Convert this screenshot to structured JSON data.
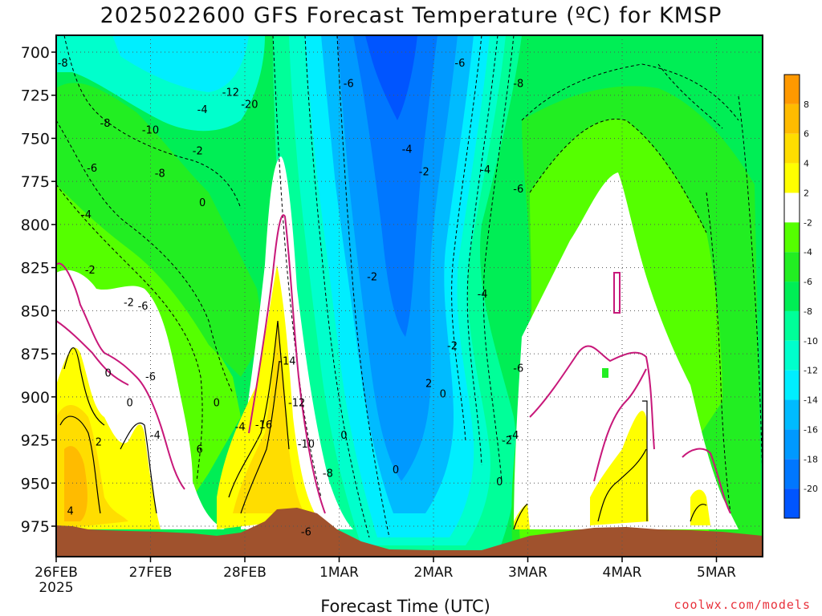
{
  "title": "2025022600 GFS Forecast Temperature (ºC) for KMSP",
  "credit": "coolwx.com/models",
  "colors": {
    "ground": "#a0522d",
    "zero_isotherm": "#c8187a",
    "contour": "#000000"
  },
  "chart_data": {
    "type": "heatmap",
    "title": "2025022600 GFS Forecast Temperature (ºC) for KMSP",
    "xlabel": "Forecast Time (UTC)",
    "ylabel": "",
    "x_ticks": [
      "26FEB",
      "27FEB",
      "28FEB",
      "1MAR",
      "2MAR",
      "3MAR",
      "4MAR",
      "5MAR"
    ],
    "x_year_label": "2025",
    "y_ticks": [
      700,
      725,
      750,
      775,
      800,
      825,
      850,
      875,
      900,
      925,
      950,
      975
    ],
    "ylim": [
      990,
      690
    ],
    "grid": true,
    "colorbar": {
      "labels": [
        "8",
        "6",
        "4",
        "2",
        "-2",
        "-4",
        "-6",
        "-8",
        "-10",
        "-12",
        "-14",
        "-16",
        "-18",
        "-20"
      ],
      "bins": [
        {
          "range": [
            8,
            10
          ],
          "color": "#ff9900"
        },
        {
          "range": [
            6,
            8
          ],
          "color": "#ffbb00"
        },
        {
          "range": [
            4,
            6
          ],
          "color": "#ffdd00"
        },
        {
          "range": [
            2,
            4
          ],
          "color": "#ffff00"
        },
        {
          "range": [
            -2,
            2
          ],
          "color": "#ffffff"
        },
        {
          "range": [
            -4,
            -2
          ],
          "color": "#55ff00"
        },
        {
          "range": [
            -6,
            -4
          ],
          "color": "#22ee22"
        },
        {
          "range": [
            -8,
            -6
          ],
          "color": "#00ee55"
        },
        {
          "range": [
            -10,
            -8
          ],
          "color": "#00ff99"
        },
        {
          "range": [
            -12,
            -10
          ],
          "color": "#00ffcc"
        },
        {
          "range": [
            -14,
            -12
          ],
          "color": "#00eeff"
        },
        {
          "range": [
            -16,
            -14
          ],
          "color": "#00bbff"
        },
        {
          "range": [
            -18,
            -16
          ],
          "color": "#0099ff"
        },
        {
          "range": [
            -20,
            -18
          ],
          "color": "#0077ff"
        },
        {
          "range": [
            -22,
            -20
          ],
          "color": "#0055ff"
        }
      ]
    },
    "contour_labels": [
      {
        "text": "-8",
        "x": 0.07,
        "y": 706
      },
      {
        "text": "-8",
        "x": 0.52,
        "y": 741
      },
      {
        "text": "-10",
        "x": 1.0,
        "y": 745
      },
      {
        "text": "-12",
        "x": 1.85,
        "y": 723
      },
      {
        "text": "-20",
        "x": 2.05,
        "y": 730
      },
      {
        "text": "-4",
        "x": 1.55,
        "y": 733
      },
      {
        "text": "-2",
        "x": 1.5,
        "y": 757
      },
      {
        "text": "0",
        "x": 1.55,
        "y": 787
      },
      {
        "text": "-6",
        "x": 0.38,
        "y": 767
      },
      {
        "text": "-8",
        "x": 1.1,
        "y": 770
      },
      {
        "text": "-4",
        "x": 0.32,
        "y": 794
      },
      {
        "text": "-2",
        "x": 0.36,
        "y": 826
      },
      {
        "text": "-2",
        "x": 0.77,
        "y": 845
      },
      {
        "text": "-6",
        "x": 0.92,
        "y": 847
      },
      {
        "text": "-6",
        "x": 1.0,
        "y": 888
      },
      {
        "text": "0",
        "x": 0.55,
        "y": 886
      },
      {
        "text": "0",
        "x": 0.78,
        "y": 903
      },
      {
        "text": "-4",
        "x": 1.05,
        "y": 922
      },
      {
        "text": "2",
        "x": 0.45,
        "y": 926
      },
      {
        "text": "6",
        "x": 1.52,
        "y": 930
      },
      {
        "text": "0",
        "x": 1.7,
        "y": 903
      },
      {
        "text": "-4",
        "x": 1.95,
        "y": 917
      },
      {
        "text": "4",
        "x": 0.15,
        "y": 966
      },
      {
        "text": "-14",
        "x": 2.45,
        "y": 879
      },
      {
        "text": "-12",
        "x": 2.55,
        "y": 903
      },
      {
        "text": "-16",
        "x": 2.2,
        "y": 916
      },
      {
        "text": "-10",
        "x": 2.65,
        "y": 927
      },
      {
        "text": "-8",
        "x": 2.88,
        "y": 944
      },
      {
        "text": "-6",
        "x": 2.65,
        "y": 978
      },
      {
        "text": "-6",
        "x": 3.1,
        "y": 718
      },
      {
        "text": "-6",
        "x": 4.28,
        "y": 706
      },
      {
        "text": "-8",
        "x": 4.9,
        "y": 718
      },
      {
        "text": "-4",
        "x": 3.72,
        "y": 756
      },
      {
        "text": "-2",
        "x": 3.9,
        "y": 769
      },
      {
        "text": "-4",
        "x": 4.55,
        "y": 768
      },
      {
        "text": "-6",
        "x": 4.9,
        "y": 779
      },
      {
        "text": "-2",
        "x": 3.35,
        "y": 830
      },
      {
        "text": "-4",
        "x": 4.52,
        "y": 840
      },
      {
        "text": "-2",
        "x": 4.2,
        "y": 870
      },
      {
        "text": "-6",
        "x": 4.9,
        "y": 883
      },
      {
        "text": "-4",
        "x": 4.85,
        "y": 922
      },
      {
        "text": "-2",
        "x": 4.78,
        "y": 925
      },
      {
        "text": "0",
        "x": 3.05,
        "y": 922
      },
      {
        "text": "0",
        "x": 3.6,
        "y": 942
      },
      {
        "text": "2",
        "x": 3.95,
        "y": 892
      },
      {
        "text": "0",
        "x": 4.1,
        "y": 898
      },
      {
        "text": "0",
        "x": 4.7,
        "y": 949
      }
    ]
  }
}
